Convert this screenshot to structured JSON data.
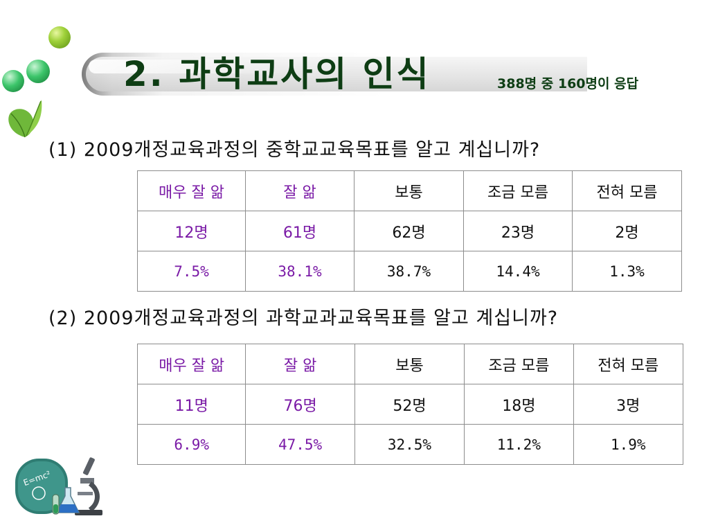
{
  "header": {
    "title": "2. 과학교사의 인식",
    "respondents": "388명 중 160명이 응답"
  },
  "q1": {
    "question": "(1) 2009개정교육과정의 중학교교육목표를 알고 계십니까?",
    "columns": [
      "매우 잘 앎",
      "잘 앎",
      "보통",
      "조금 모름",
      "전혀 모름"
    ],
    "counts": [
      "12명",
      "61명",
      "62명",
      "23명",
      "2명"
    ],
    "percents": [
      "7.5%",
      "38.1%",
      "38.7%",
      "14.4%",
      "1.3%"
    ]
  },
  "q2": {
    "question": "(2) 2009개정교육과정의 과학교과교육목표를 알고 계십니까?",
    "columns": [
      "매우 잘 앎",
      "잘 앎",
      "보통",
      "조금 모름",
      "전혀 모름"
    ],
    "counts": [
      "11명",
      "76명",
      "52명",
      "18명",
      "3명"
    ],
    "percents": [
      "6.9%",
      "47.5%",
      "32.5%",
      "11.2%",
      "1.9%"
    ]
  },
  "decor": {
    "chalkboard_text": "E=mc²",
    "icons": [
      "green-bubble-icon",
      "leaf-icon",
      "chalkboard-icon",
      "microscope-icon",
      "flask-icon"
    ],
    "colors": {
      "title": "#0e3d14",
      "highlight": "#7a1aa6",
      "border": "#8c8c8c"
    }
  }
}
